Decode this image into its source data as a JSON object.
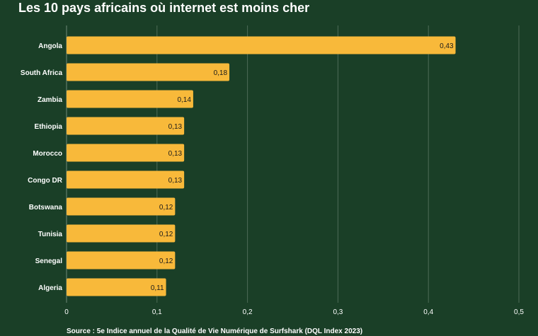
{
  "chart_data": {
    "type": "bar",
    "orientation": "horizontal",
    "title": "Les 10 pays africains où internet est moins cher",
    "source": "Source : 5e Indice annuel de la Qualité de Vie Numérique de Surfshark (DQL Index 2023)",
    "categories": [
      "Angola",
      "South Africa",
      "Zambia",
      "Ethiopia",
      "Morocco",
      "Congo DR",
      "Botswana",
      "Tunisia",
      "Senegal",
      "Algeria"
    ],
    "values": [
      0.43,
      0.18,
      0.14,
      0.13,
      0.13,
      0.13,
      0.12,
      0.12,
      0.12,
      0.11
    ],
    "data_labels": [
      "0,43",
      "0,18",
      "0,14",
      "0,13",
      "0,13",
      "0,13",
      "0,12",
      "0,12",
      "0,12",
      "0,11"
    ],
    "xlim": [
      0,
      0.5
    ],
    "xticks": [
      0,
      0.1,
      0.2,
      0.3,
      0.4,
      0.5
    ],
    "xtick_labels": [
      "0",
      "0,1",
      "0,2",
      "0,3",
      "0,4",
      "0,5"
    ],
    "xlabel": "",
    "ylabel": "",
    "grid": "vertical",
    "colors": {
      "background": "#1a3f27",
      "bar": "#f8b93a",
      "grid": "#4e6b57",
      "text": "#ffffff",
      "data_label": "#1a1a1a"
    }
  }
}
